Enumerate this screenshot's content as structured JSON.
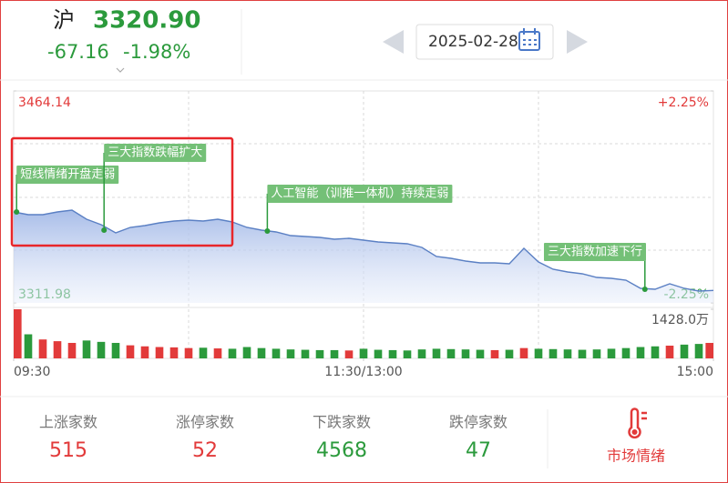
{
  "header": {
    "market": "沪",
    "price": "3320.90",
    "change": "-67.16",
    "change_pct": "-1.98%",
    "date": "2025-02-28"
  },
  "chart_data": {
    "type": "line",
    "x": [
      0,
      5,
      10,
      15,
      20,
      25,
      30,
      35,
      40,
      45,
      50,
      55,
      60,
      65,
      70,
      75,
      80,
      85,
      90,
      95,
      100,
      105,
      110,
      115,
      120,
      125,
      130,
      135,
      140,
      145,
      150,
      155,
      160,
      165,
      170,
      175,
      180,
      185,
      190,
      195,
      200,
      205,
      210,
      215,
      220,
      225,
      230,
      235,
      240
    ],
    "xlim": [
      0,
      240
    ],
    "xticks": [
      {
        "value": 0,
        "label": "09:30"
      },
      {
        "value": 120,
        "label": "11:30/13:00"
      },
      {
        "value": 240,
        "label": "15:00"
      }
    ],
    "ylim": [
      3311.98,
      3464.14
    ],
    "yticks": [
      3311.98,
      3464.14
    ],
    "y2lim": [
      -2.25,
      2.25
    ],
    "y2ticks": [
      {
        "value": -2.25,
        "label": "-2.25%"
      },
      {
        "value": 2.25,
        "label": "+2.25%"
      }
    ],
    "series": [
      {
        "color": "#5b80c4",
        "values": [
          3377.28,
          3375.32,
          3375.32,
          3377.28,
          3378.59,
          3372.06,
          3368.14,
          3362.26,
          3366.18,
          3367.49,
          3369.44,
          3370.75,
          3371.4,
          3370.75,
          3372.06,
          3370.1,
          3366.18,
          3364.22,
          3362.91,
          3360.3,
          3359.65,
          3359.0,
          3357.69,
          3358.34,
          3357.04,
          3355.73,
          3355.08,
          3354.43,
          3351.81,
          3345.28,
          3343.98,
          3342.02,
          3340.71,
          3340.71,
          3340.06,
          3351.16,
          3341.37,
          3336.14,
          3334.18,
          3332.88,
          3330.26,
          3329.61,
          3328.31,
          3322.43,
          3321.78,
          3325.69,
          3322.43,
          3320.47,
          3320.9
        ]
      }
    ],
    "annotations": [
      {
        "text": "短线情绪开盘走弱",
        "x": 1,
        "y": 3377.28
      },
      {
        "text": "三大指数跌幅扩大",
        "x": 31,
        "y": 3364.22
      },
      {
        "text": "人工智能（训推一体机）持续走弱",
        "x": 87,
        "y": 3363.6
      },
      {
        "text": "三大指数加速下行",
        "x": 216.5,
        "y": 3321.8
      }
    ],
    "volume": {
      "values": [
        1428,
        700,
        550,
        500,
        450,
        520,
        480,
        450,
        380,
        350,
        330,
        320,
        300,
        310,
        290,
        280,
        330,
        300,
        280,
        260,
        250,
        240,
        240,
        230,
        280,
        250,
        240,
        230,
        260,
        280,
        270,
        260,
        250,
        240,
        250,
        300,
        280,
        270,
        260,
        250,
        260,
        280,
        300,
        330,
        350,
        370,
        400,
        420,
        450
      ],
      "ylim": [
        0,
        1428.0
      ],
      "yticks": [
        {
          "value": 1428.0,
          "label": "1428.0万"
        }
      ],
      "up_color": "#e23a3a",
      "down_color": "#2b9a3c"
    }
  },
  "stats": [
    {
      "label": "上涨家数",
      "value": 515
    },
    {
      "label": "涨停家数",
      "value": 52
    },
    {
      "label": "下跌家数",
      "value": 4568
    },
    {
      "label": "跌停家数",
      "value": 47
    }
  ],
  "button": "市场情绪"
}
